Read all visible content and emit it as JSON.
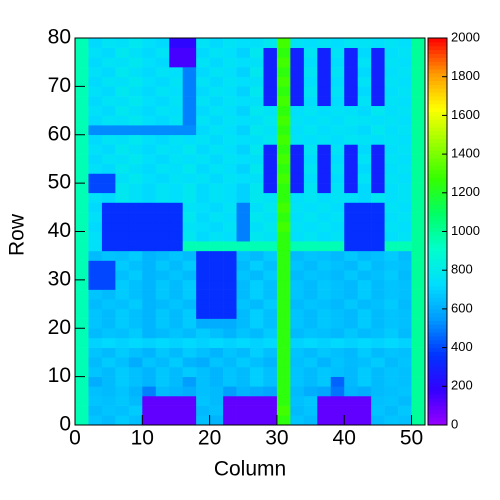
{
  "chart_data": {
    "type": "heatmap",
    "x_label": "Column",
    "y_label": "Row",
    "xlim": [
      0,
      52
    ],
    "ylim": [
      0,
      80
    ],
    "zlim": [
      0,
      2000
    ],
    "xticks": [
      0,
      10,
      20,
      30,
      40,
      50
    ],
    "yticks": [
      0,
      10,
      20,
      30,
      40,
      50,
      60,
      70,
      80
    ],
    "zticks": [
      0,
      200,
      400,
      600,
      800,
      1000,
      1200,
      1400,
      1600,
      1800,
      2000
    ],
    "palette": [
      "#9900ff",
      "#3300ff",
      "#0033ff",
      "#0099ff",
      "#00ddff",
      "#00ffcc",
      "#00ff66",
      "#33ff00",
      "#99ff00",
      "#ffff00",
      "#ff9900",
      "#ff0000"
    ],
    "xbins": [
      0,
      2,
      4,
      6,
      8,
      10,
      12,
      14,
      16,
      18,
      20,
      22,
      24,
      26,
      28,
      30,
      32,
      34,
      36,
      38,
      40,
      42,
      44,
      46,
      48,
      50,
      52
    ],
    "ybins": [
      0,
      2,
      4,
      6,
      8,
      10,
      12,
      14,
      16,
      18,
      20,
      22,
      24,
      26,
      28,
      30,
      32,
      34,
      36,
      38,
      40,
      42,
      44,
      46,
      48,
      50,
      52,
      54,
      56,
      58,
      60,
      62,
      64,
      66,
      68,
      70,
      72,
      74,
      76,
      78,
      80
    ],
    "z": [
      [
        950,
        660,
        640,
        680,
        650,
        100,
        100,
        100,
        100,
        650,
        620,
        100,
        100,
        100,
        100,
        1250,
        660,
        640,
        100,
        100,
        100,
        100,
        640,
        660,
        650,
        1000
      ],
      [
        950,
        640,
        660,
        650,
        680,
        100,
        100,
        100,
        100,
        630,
        650,
        100,
        100,
        100,
        100,
        1300,
        640,
        660,
        100,
        100,
        100,
        100,
        660,
        640,
        670,
        1000
      ],
      [
        950,
        660,
        650,
        670,
        640,
        100,
        100,
        100,
        100,
        660,
        640,
        100,
        100,
        100,
        100,
        1250,
        650,
        670,
        100,
        100,
        100,
        100,
        650,
        660,
        640,
        1000
      ],
      [
        950,
        650,
        640,
        660,
        620,
        500,
        640,
        620,
        600,
        650,
        640,
        560,
        620,
        600,
        580,
        1250,
        640,
        600,
        580,
        480,
        620,
        600,
        640,
        650,
        660,
        1000
      ],
      [
        950,
        600,
        640,
        680,
        650,
        620,
        670,
        640,
        560,
        650,
        620,
        660,
        640,
        690,
        650,
        1250,
        660,
        640,
        670,
        450,
        630,
        680,
        640,
        660,
        650,
        1000
      ],
      [
        950,
        660,
        640,
        680,
        650,
        620,
        670,
        640,
        680,
        650,
        620,
        660,
        640,
        690,
        650,
        1250,
        660,
        640,
        670,
        650,
        630,
        680,
        640,
        660,
        650,
        1000
      ],
      [
        950,
        640,
        680,
        650,
        600,
        660,
        640,
        680,
        620,
        600,
        660,
        640,
        680,
        650,
        620,
        1250,
        650,
        670,
        620,
        660,
        640,
        650,
        680,
        640,
        660,
        1000
      ],
      [
        950,
        660,
        640,
        680,
        650,
        620,
        670,
        640,
        680,
        650,
        620,
        660,
        640,
        690,
        650,
        1250,
        660,
        640,
        670,
        650,
        630,
        680,
        640,
        660,
        650,
        1000
      ],
      [
        950,
        700,
        720,
        700,
        720,
        700,
        720,
        700,
        720,
        700,
        720,
        700,
        720,
        700,
        720,
        1250,
        700,
        720,
        700,
        720,
        700,
        720,
        700,
        720,
        700,
        1000
      ],
      [
        950,
        640,
        660,
        650,
        680,
        620,
        640,
        660,
        640,
        680,
        650,
        620,
        660,
        640,
        680,
        1250,
        640,
        660,
        650,
        630,
        670,
        640,
        650,
        680,
        640,
        1000
      ],
      [
        950,
        660,
        640,
        680,
        650,
        620,
        670,
        640,
        680,
        600,
        600,
        600,
        640,
        690,
        650,
        1250,
        660,
        640,
        670,
        650,
        630,
        680,
        640,
        660,
        650,
        1000
      ],
      [
        950,
        660,
        640,
        680,
        650,
        620,
        670,
        640,
        680,
        350,
        350,
        350,
        640,
        690,
        650,
        1250,
        660,
        640,
        670,
        650,
        630,
        680,
        640,
        660,
        650,
        1000
      ],
      [
        950,
        640,
        660,
        650,
        680,
        620,
        640,
        660,
        640,
        350,
        350,
        350,
        660,
        640,
        680,
        1250,
        640,
        660,
        650,
        630,
        670,
        640,
        650,
        680,
        640,
        1000
      ],
      [
        950,
        660,
        640,
        680,
        650,
        620,
        670,
        640,
        680,
        350,
        350,
        350,
        640,
        690,
        650,
        1250,
        660,
        640,
        670,
        650,
        630,
        680,
        640,
        660,
        650,
        1000
      ],
      [
        950,
        400,
        400,
        680,
        650,
        620,
        670,
        640,
        680,
        350,
        350,
        350,
        640,
        690,
        650,
        1250,
        660,
        640,
        670,
        650,
        630,
        680,
        640,
        660,
        650,
        1000
      ],
      [
        950,
        400,
        400,
        650,
        680,
        620,
        640,
        660,
        640,
        350,
        350,
        350,
        660,
        640,
        680,
        1250,
        640,
        660,
        650,
        630,
        670,
        640,
        650,
        680,
        640,
        1000
      ],
      [
        950,
        400,
        400,
        680,
        650,
        620,
        670,
        640,
        680,
        350,
        350,
        350,
        640,
        690,
        650,
        1250,
        660,
        640,
        670,
        650,
        630,
        680,
        640,
        660,
        650,
        1000
      ],
      [
        950,
        640,
        660,
        650,
        680,
        620,
        640,
        660,
        640,
        350,
        350,
        350,
        660,
        640,
        680,
        1250,
        640,
        660,
        650,
        630,
        670,
        640,
        650,
        680,
        640,
        1000
      ],
      [
        950,
        750,
        350,
        350,
        350,
        350,
        350,
        350,
        950,
        950,
        950,
        950,
        950,
        950,
        950,
        1250,
        950,
        950,
        950,
        950,
        350,
        350,
        350,
        950,
        950,
        1000
      ],
      [
        950,
        750,
        350,
        350,
        350,
        350,
        350,
        350,
        780,
        720,
        760,
        740,
        500,
        780,
        760,
        1250,
        740,
        770,
        730,
        760,
        350,
        350,
        350,
        740,
        760,
        1000
      ],
      [
        950,
        720,
        350,
        350,
        350,
        350,
        350,
        350,
        760,
        740,
        720,
        760,
        500,
        750,
        780,
        1300,
        760,
        740,
        760,
        730,
        350,
        350,
        350,
        760,
        740,
        1000
      ],
      [
        950,
        750,
        350,
        350,
        350,
        350,
        350,
        350,
        780,
        720,
        760,
        740,
        500,
        780,
        760,
        1250,
        740,
        770,
        730,
        760,
        350,
        350,
        350,
        740,
        760,
        1000
      ],
      [
        950,
        720,
        350,
        350,
        350,
        350,
        350,
        350,
        760,
        740,
        720,
        760,
        500,
        750,
        780,
        1300,
        760,
        740,
        760,
        730,
        350,
        350,
        350,
        760,
        740,
        1000
      ],
      [
        950,
        750,
        720,
        780,
        750,
        720,
        760,
        740,
        780,
        720,
        760,
        740,
        700,
        780,
        760,
        1250,
        740,
        770,
        730,
        760,
        750,
        720,
        780,
        740,
        760,
        1000
      ],
      [
        950,
        400,
        400,
        780,
        750,
        720,
        760,
        740,
        780,
        720,
        760,
        740,
        700,
        780,
        300,
        1250,
        300,
        770,
        300,
        760,
        300,
        720,
        300,
        740,
        760,
        1000
      ],
      [
        950,
        400,
        400,
        750,
        780,
        740,
        720,
        760,
        740,
        760,
        720,
        760,
        740,
        750,
        300,
        1300,
        300,
        740,
        300,
        730,
        300,
        760,
        300,
        760,
        740,
        1000
      ],
      [
        950,
        750,
        720,
        780,
        750,
        720,
        760,
        740,
        780,
        720,
        760,
        740,
        700,
        780,
        300,
        1250,
        300,
        770,
        300,
        760,
        300,
        720,
        300,
        740,
        760,
        1000
      ],
      [
        950,
        720,
        760,
        750,
        780,
        740,
        720,
        760,
        740,
        760,
        720,
        760,
        740,
        750,
        300,
        1300,
        300,
        740,
        300,
        730,
        300,
        760,
        300,
        760,
        740,
        1000
      ],
      [
        950,
        750,
        720,
        780,
        750,
        720,
        760,
        740,
        780,
        720,
        760,
        740,
        700,
        780,
        300,
        1250,
        300,
        770,
        300,
        760,
        300,
        720,
        300,
        740,
        760,
        1000
      ],
      [
        950,
        720,
        760,
        750,
        780,
        740,
        720,
        760,
        740,
        760,
        720,
        760,
        740,
        750,
        780,
        1300,
        760,
        740,
        760,
        730,
        770,
        760,
        740,
        760,
        740,
        1000
      ],
      [
        950,
        520,
        520,
        520,
        520,
        520,
        520,
        520,
        520,
        720,
        760,
        740,
        700,
        780,
        760,
        1250,
        740,
        770,
        730,
        760,
        750,
        720,
        780,
        740,
        760,
        1000
      ],
      [
        950,
        720,
        760,
        750,
        780,
        740,
        720,
        760,
        500,
        760,
        720,
        760,
        740,
        750,
        780,
        1300,
        760,
        740,
        760,
        730,
        770,
        760,
        740,
        760,
        740,
        1000
      ],
      [
        950,
        750,
        720,
        780,
        750,
        720,
        760,
        740,
        500,
        720,
        760,
        740,
        700,
        780,
        760,
        1250,
        740,
        770,
        730,
        760,
        750,
        720,
        780,
        740,
        760,
        1000
      ],
      [
        950,
        720,
        760,
        750,
        780,
        740,
        720,
        760,
        500,
        760,
        720,
        760,
        740,
        750,
        300,
        1300,
        300,
        740,
        300,
        730,
        300,
        760,
        300,
        760,
        740,
        1000
      ],
      [
        950,
        750,
        720,
        780,
        750,
        720,
        760,
        740,
        500,
        720,
        760,
        740,
        700,
        780,
        300,
        1250,
        300,
        770,
        300,
        760,
        300,
        720,
        300,
        740,
        760,
        1000
      ],
      [
        950,
        720,
        760,
        750,
        780,
        740,
        720,
        760,
        500,
        760,
        720,
        760,
        740,
        750,
        300,
        1300,
        300,
        740,
        300,
        730,
        300,
        760,
        300,
        760,
        740,
        1000
      ],
      [
        950,
        750,
        720,
        780,
        750,
        720,
        760,
        740,
        500,
        720,
        760,
        740,
        700,
        780,
        300,
        1250,
        300,
        770,
        300,
        760,
        300,
        720,
        300,
        740,
        760,
        1000
      ],
      [
        950,
        720,
        760,
        750,
        780,
        740,
        720,
        150,
        150,
        760,
        720,
        760,
        740,
        750,
        300,
        1300,
        300,
        740,
        300,
        730,
        300,
        760,
        300,
        760,
        740,
        1000
      ],
      [
        950,
        750,
        720,
        780,
        750,
        720,
        760,
        150,
        150,
        720,
        760,
        740,
        700,
        780,
        300,
        1250,
        300,
        770,
        300,
        760,
        300,
        720,
        300,
        740,
        760,
        1000
      ],
      [
        950,
        720,
        760,
        750,
        780,
        740,
        720,
        200,
        200,
        760,
        720,
        760,
        740,
        750,
        780,
        1300,
        760,
        740,
        760,
        730,
        770,
        760,
        740,
        760,
        740,
        1000
      ]
    ]
  }
}
